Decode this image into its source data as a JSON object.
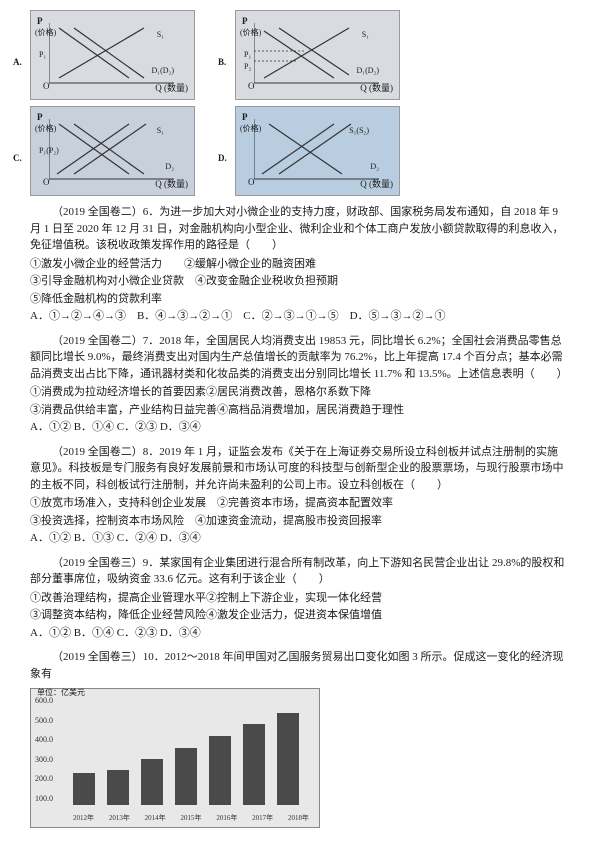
{
  "axes": {
    "y": "P",
    "yParen": "(价格)",
    "x": "Q (数量)",
    "o": "O"
  },
  "graphs": {
    "A": {
      "letter": "A.",
      "p1": "P₁",
      "p2": "",
      "s": "S₁",
      "s2": "S₂",
      "d": "D₁(D₂)"
    },
    "B": {
      "letter": "B.",
      "p1": "P₁",
      "p2": "P₂",
      "s": "S₁",
      "s2": "S₂",
      "d": "D₁(D₂)"
    },
    "C": {
      "letter": "C.",
      "p1": "P₁(P₂)",
      "p2": "",
      "s": "S₁",
      "s2": "S₂",
      "d": "D₂",
      "d2": "D₁"
    },
    "D": {
      "letter": "D.",
      "p1": "",
      "p2": "",
      "s": "S₁(S₂)",
      "s2": "",
      "d": "D₂",
      "d2": "D₁"
    }
  },
  "q6": {
    "stem": "（2019 全国卷二）6．为进一步加大对小微企业的支持力度，财政部、国家税务局发布通知，自 2018 年 9 月 1 日至 2020 年 12 月 31 日，对金融机构向小型企业、微利企业和个体工商户发放小额贷款取得的利息收入，免征增值税。该税收政策发挥作用的路径是（　　）",
    "o1": "①激发小微企业的经营活力　　②缓解小微企业的融资困难",
    "o2": "③引导金融机构对小微企业贷款　④改变金融企业税收负担预期",
    "o3": "⑤降低金融机构的贷款利率",
    "ans": "A．①→②→④→③　B．④→③→②→①　C．②→③→①→⑤　D．⑤→③→②→①"
  },
  "q7": {
    "stem": "（2019 全国卷二）7．2018 年，全国居民人均消费支出 19853 元，同比增长 6.2%；全国社会消费品零售总额同比增长 9.0%，最终消费支出对国内生产总值增长的贡献率为 76.2%，比上年提高 17.4 个百分点；基本必需品消费支出占比下降，通讯器材类和化妆品类的消费支出分别同比增长 11.7% 和 13.5%。上述信息表明（　　）",
    "o1": "①消费成为拉动经济增长的首要因素②居民消费改善，恩格尔系数下降",
    "o2": "③消费品供给丰富，产业结构日益完善④高档品消费增加，居民消费趋于理性",
    "ans": "A．①②  B．①④  C．②③  D．③④"
  },
  "q8": {
    "stem": "（2019 全国卷二）8．2019 年 1 月，证监会发布《关于在上海证券交易所设立科创板并试点注册制的实施意见》。科技板是专门服务有良好发展前景和市场认可度的科技型与创新型企业的股票票场，与现行股票市场中的主板不同，科创板试行注册制，并允许尚未盈利的公司上市。设立科创板在（　　）",
    "o1": "①放宽市场准入，支持科创企业发展　②完善资本市场，提高资本配置效率",
    "o2": "③投资选择，控制资本市场风险　④加速资金流动，提高股市投资回报率",
    "ans": "A．①②  B．①③  C．②④  D．③④"
  },
  "q9": {
    "stem": "（2019 全国卷三）9．某家国有企业集团进行混合所有制改革，向上下游知名民营企业出让 29.8%的股权和部分董事席位，吸纳资金 33.6 亿元。这有利于该企业（　　）",
    "o1": "①改善治理结构，提高企业管理水平②控制上下游企业，实现一体化经营",
    "o2": "③调整资本结构，降低企业经营风险④激发企业活力，促进资本保值增值",
    "ans": "A．①②  B．①④  C．②③  D．③④"
  },
  "q10": {
    "stem": "（2019 全国卷三）10．2012～2018 年间甲国对乙国服务贸易出口变化如图 3 所示。促成这一变化的经济现象有"
  },
  "barChart": {
    "unit": "单位：亿美元",
    "yTicks": [
      "600.0",
      "500.0",
      "400.0",
      "300.0",
      "200.0",
      "100.0"
    ],
    "xLabels": [
      "2012年",
      "2013年",
      "2014年",
      "2015年",
      "2016年",
      "2017年",
      "2018年"
    ],
    "values": [
      180,
      200,
      260,
      320,
      390,
      460,
      520
    ],
    "yMax": 600,
    "barColor": "#4a4a4a",
    "bg": "#e8e8e8"
  }
}
